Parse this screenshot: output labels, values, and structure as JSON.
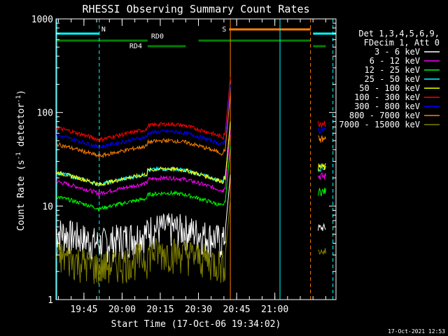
{
  "chart_data": {
    "type": "line",
    "title": "RHESSI Observing Summary Count Rates",
    "xlabel": "Start Time (17-Oct-06 19:34:02)",
    "ylabel_main": "Count Rate (s",
    "ylabel_sup1": "-1",
    "ylabel_mid": " detector",
    "ylabel_sup2": "-1",
    "ylabel_end": ")",
    "yscale": "log",
    "ylim": [
      1,
      1000
    ],
    "xlim_minutes": [
      0,
      110
    ],
    "y_ticks": [
      "1",
      "10",
      "100",
      "1000"
    ],
    "x_ticks": [
      {
        "label": "19:45",
        "min": 10.97
      },
      {
        "label": "20:00",
        "min": 25.97
      },
      {
        "label": "20:15",
        "min": 40.97
      },
      {
        "label": "20:30",
        "min": 55.97
      },
      {
        "label": "20:45",
        "min": 70.97
      },
      {
        "label": "21:00",
        "min": 85.97
      }
    ],
    "legend_header": [
      "Det 1,3,4,5,6,9,",
      "FDecim 1, Att 0"
    ],
    "series": [
      {
        "name": "3 - 6 keV",
        "color": "#ffffff",
        "base": 4.5
      },
      {
        "name": "6 - 12 keV",
        "color": "#ff00ff",
        "base": 16
      },
      {
        "name": "12 - 25 keV",
        "color": "#00ff00",
        "base": 11
      },
      {
        "name": "25 - 50 keV",
        "color": "#00ffff",
        "base": 20
      },
      {
        "name": "50 - 100 keV",
        "color": "#ffff00",
        "base": 20
      },
      {
        "name": "100 - 300 keV",
        "color": "#ff0000",
        "base": 60
      },
      {
        "name": "300 - 800 keV",
        "color": "#0000ff",
        "base": 50
      },
      {
        "name": "800 - 7000 keV",
        "color": "#ff8000",
        "base": 40
      },
      {
        "name": "7000 - 15000 keV",
        "color": "#808000",
        "base": 2.5
      }
    ],
    "flags": [
      {
        "label": "N",
        "color": "#00ffff",
        "start": 0,
        "end": 17
      },
      {
        "label": "RD0",
        "color": "#008000",
        "start": 0,
        "end": 36
      },
      {
        "label": "RD4",
        "color": "#008000",
        "start": 36,
        "end": 51
      },
      {
        "label": "S",
        "color": "#ff8000",
        "start": 68,
        "end": 100
      }
    ],
    "timestamp": "17-Oct-2021 12:53"
  }
}
